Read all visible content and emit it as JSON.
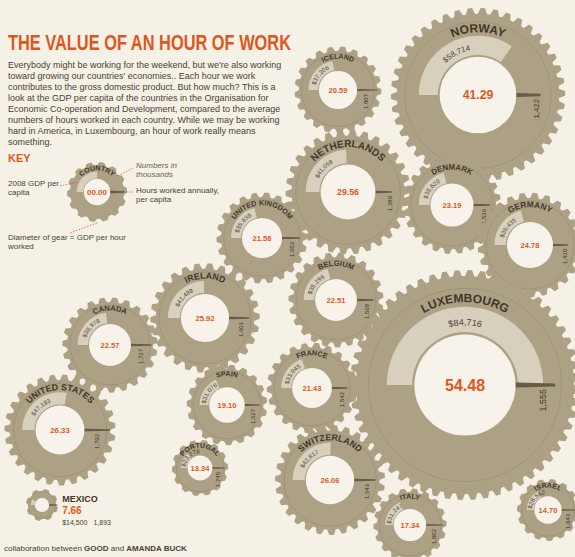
{
  "chart_data": {
    "type": "gear",
    "title": "THE VALUE OF AN HOUR OF WORK",
    "intro": "Everybody might be working for the weekend, but we're also working toward growing our countries' economies.. Each hour we work contributes to the gross domestic product. But how much? This is a look at the GDP per capita of the countries in the Organisation for Economic Co-operation and Development, compared to the average numbers of hours worked in each country. While we may be working hard in America, in Luxembourg, an hour of work really means something.",
    "key": {
      "title": "KEY",
      "country": "COUNTRY",
      "sample": "00.00",
      "note": "Numbers in thousands",
      "gdp_per_capita": "2008 GDP per capita",
      "hours": "Hours worked annually, per capita",
      "diameter": "Diameter of gear = GDP per hour worked"
    },
    "credit": [
      "collaboration between ",
      "GOOD",
      " and ",
      "AMANDA BUCK"
    ],
    "color": "#aca185",
    "data_labels": true,
    "categories": [
      "NORWAY",
      "ICELAND",
      "NETHERLANDS",
      "DENMARK",
      "GERMANY",
      "UNITED KINGDOM",
      "BELGIUM",
      "IRELAND",
      "CANADA",
      "FRANCE",
      "SPAIN",
      "UNITED STATES",
      "PORTUGAL",
      "SWITZERLAND",
      "LUXEMBOURG",
      "ITALY",
      "MEXICO",
      "ISRAEL"
    ],
    "gdp_per_hour": [
      41.29,
      20.59,
      29.56,
      23.19,
      24.78,
      21.56,
      22.51,
      25.92,
      22.57,
      21.43,
      19.1,
      26.33,
      13.34,
      26.06,
      54.48,
      17.34,
      7.66,
      14.7
    ],
    "gdp_per_hour_labels": [
      "41.29",
      "20.59",
      "29.56",
      "23.19",
      "24.78",
      "21.56",
      "22.51",
      "25.92",
      "22.57",
      "21.43",
      "19.10",
      "26.33",
      "13.34",
      "26.06",
      "54.48",
      "17.34",
      "7.66",
      "14.70"
    ],
    "gdp_per_capita": [
      58714,
      37206,
      41059,
      35620,
      35435,
      35639,
      35296,
      41498,
      38978,
      33045,
      31076,
      47183,
      23278,
      42817,
      84716,
      31247,
      14500,
      28562
    ],
    "gdp_per_capita_labels": [
      "$58,714",
      "$37,206",
      "$41,059",
      "$35,620",
      "$35,435",
      "$35,639",
      "$35,296",
      "$41,498",
      "$38,978",
      "$33,045",
      "$31,076",
      "$47,183",
      "$23,278",
      "$42,817",
      "$84,716",
      "$31,247",
      "$14,500",
      "$28,562"
    ],
    "hours": [
      1422,
      1807,
      1389,
      1536,
      1430,
      1653,
      1568,
      1601,
      1727,
      1542,
      1627,
      1792,
      1745,
      1643,
      1555,
      1802,
      1893,
      1943
    ],
    "hours_labels": [
      "1,422",
      "1,807",
      "1,389",
      "1,536",
      "1,430",
      "1,653",
      "1,568",
      "1,601",
      "1,727",
      "1,542",
      "1,627",
      "1,792",
      "1,745",
      "1,643",
      "1,555",
      "1,802",
      "1,893",
      "1,943"
    ]
  }
}
